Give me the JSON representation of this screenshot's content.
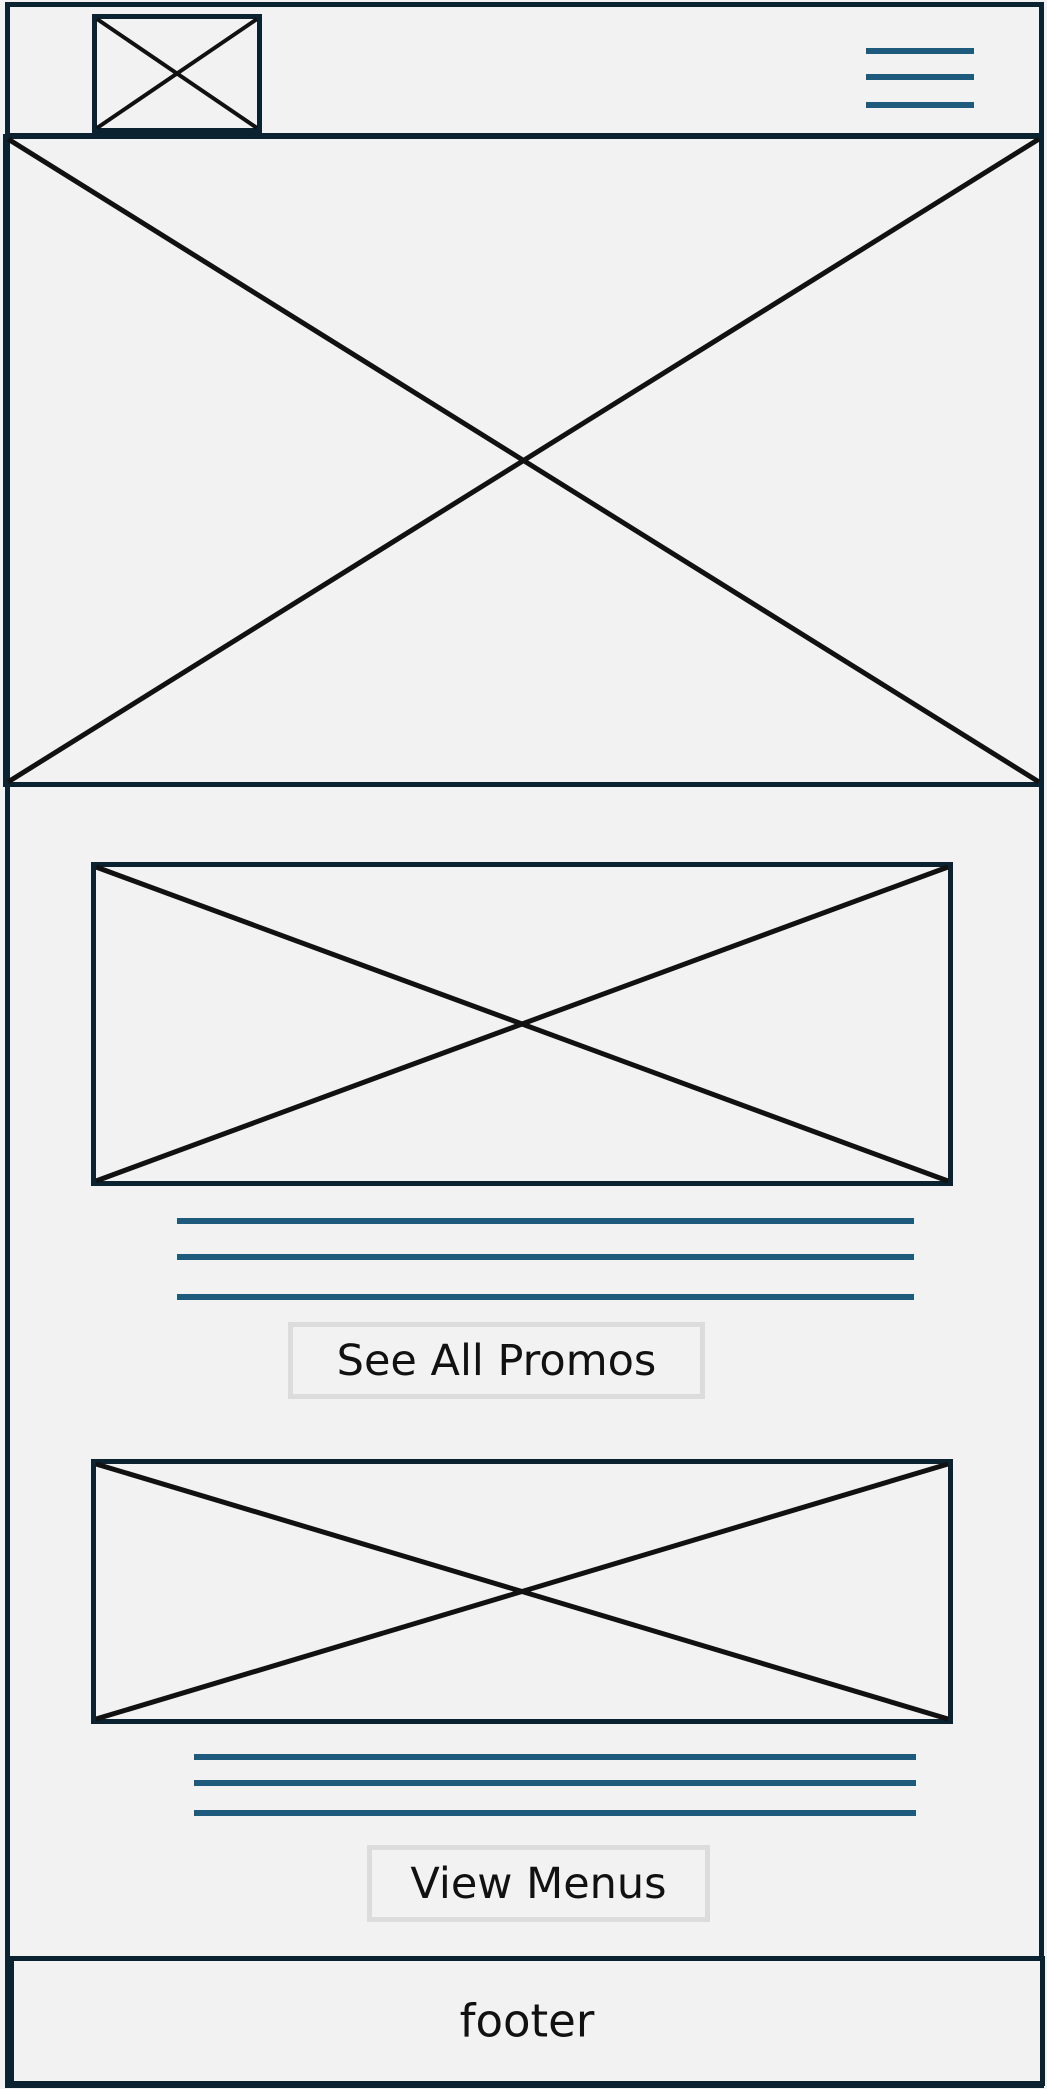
{
  "header": {
    "logo_icon": "image-placeholder-icon",
    "menu_icon": "hamburger-menu-icon"
  },
  "hero": {
    "icon": "image-placeholder-icon"
  },
  "promos": {
    "icon": "image-placeholder-icon",
    "button_label": "See All Promos"
  },
  "menus": {
    "icon": "image-placeholder-icon",
    "button_label": "View Menus"
  },
  "footer": {
    "label": "footer"
  },
  "colors": {
    "border": "#0b2230",
    "text_line": "#1e5a7c",
    "button_border": "#dcdcdc",
    "background": "#f2f2f2"
  }
}
